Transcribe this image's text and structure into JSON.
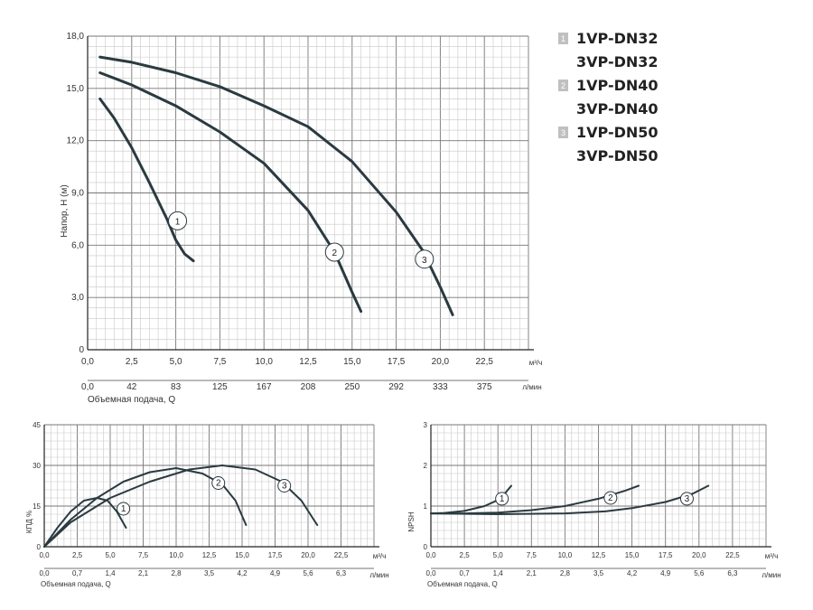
{
  "colors": {
    "curve": "#2a3a40",
    "grid_major": "#777777",
    "grid_minor": "#c8c8c8",
    "legend_box": "#c0c0c0"
  },
  "legend": [
    {
      "num": "1",
      "lines": [
        "1VP-DN32",
        "3VP-DN32"
      ]
    },
    {
      "num": "2",
      "lines": [
        "1VP-DN40",
        "3VP-DN40"
      ]
    },
    {
      "num": "3",
      "lines": [
        "1VP-DN50",
        "3VP-DN50"
      ]
    }
  ],
  "chart_data": [
    {
      "id": "head",
      "type": "line",
      "ylabel": "Напор, Н (м)",
      "xlabel": "Объемная подача, Q",
      "x_unit": "м³/ч",
      "x2_unit": "л/мин",
      "xlim": [
        0,
        25
      ],
      "ylim": [
        0,
        18
      ],
      "x_ticks": [
        "0,0",
        "2,5",
        "5,0",
        "7,5",
        "10,0",
        "12,5",
        "15,0",
        "17,5",
        "20,0",
        "22,5"
      ],
      "x2_ticks": [
        "0,0",
        "42",
        "83",
        "125",
        "167",
        "208",
        "250",
        "292",
        "333",
        "375"
      ],
      "y_ticks": [
        "0",
        "3,0",
        "6,0",
        "9,0",
        "12,0",
        "15,0",
        "18,0"
      ],
      "grid": true,
      "series": [
        {
          "name": "1",
          "x": [
            0.7,
            1.5,
            2.5,
            3.5,
            4.5,
            5.0,
            5.5,
            6.0
          ],
          "y": [
            14.4,
            13.3,
            11.6,
            9.6,
            7.5,
            6.3,
            5.5,
            5.1
          ]
        },
        {
          "name": "2",
          "x": [
            0.7,
            2.5,
            5.0,
            7.5,
            10.0,
            12.5,
            14.0,
            15.0,
            15.5
          ],
          "y": [
            15.9,
            15.2,
            14.0,
            12.5,
            10.7,
            8.0,
            5.6,
            3.3,
            2.2
          ]
        },
        {
          "name": "3",
          "x": [
            0.7,
            2.5,
            5.0,
            7.5,
            10.0,
            12.5,
            15.0,
            17.5,
            19.0,
            20.0,
            20.7
          ],
          "y": [
            16.8,
            16.5,
            15.9,
            15.1,
            14.0,
            12.8,
            10.8,
            7.9,
            5.7,
            3.6,
            2.0
          ]
        }
      ],
      "labels": [
        {
          "name": "1",
          "x": 5.1,
          "y": 7.4
        },
        {
          "name": "2",
          "x": 14.0,
          "y": 5.6
        },
        {
          "name": "3",
          "x": 19.1,
          "y": 5.2
        }
      ]
    },
    {
      "id": "efficiency",
      "type": "line",
      "ylabel": "КПД %",
      "xlabel": "Объемная подача, Q",
      "x_unit": "м³/ч",
      "x2_unit": "л/мин",
      "xlim": [
        0,
        25
      ],
      "ylim": [
        0,
        45
      ],
      "x_ticks": [
        "0,0",
        "2,5",
        "5,0",
        "7,5",
        "10,0",
        "12,5",
        "15,0",
        "17,5",
        "20,0",
        "22,5"
      ],
      "x2_ticks": [
        "0,0",
        "0,7",
        "1,4",
        "2,1",
        "2,8",
        "3,5",
        "4,2",
        "4,9",
        "5,6",
        "6,3"
      ],
      "y_ticks": [
        "0",
        "15",
        "30",
        "45"
      ],
      "grid": true,
      "series": [
        {
          "name": "1",
          "x": [
            0.0,
            1.0,
            2.0,
            3.0,
            4.0,
            4.8,
            5.5,
            6.2
          ],
          "y": [
            0,
            7,
            13,
            17,
            18,
            17,
            13,
            7
          ]
        },
        {
          "name": "2",
          "x": [
            0.0,
            2.0,
            4.0,
            6.0,
            8.0,
            10.0,
            12.0,
            13.5,
            14.5,
            15.3
          ],
          "y": [
            0,
            10,
            18,
            24,
            27.5,
            29,
            27,
            23,
            17,
            8
          ]
        },
        {
          "name": "3",
          "x": [
            0.0,
            2.0,
            5.0,
            8.0,
            11.0,
            13.5,
            16.0,
            18.0,
            19.5,
            20.7
          ],
          "y": [
            0,
            9,
            18,
            24,
            28.5,
            30,
            28.5,
            24,
            17,
            8
          ]
        }
      ],
      "labels": [
        {
          "name": "1",
          "x": 6.0,
          "y": 14
        },
        {
          "name": "2",
          "x": 13.2,
          "y": 23.5
        },
        {
          "name": "3",
          "x": 18.2,
          "y": 22.5
        }
      ]
    },
    {
      "id": "npsh",
      "type": "line",
      "ylabel": "NPSH",
      "xlabel": "Объемная подача, Q",
      "x_unit": "м³/ч",
      "x2_unit": "л/мин",
      "xlim": [
        0,
        25
      ],
      "ylim": [
        0,
        3
      ],
      "x_ticks": [
        "0,0",
        "2,5",
        "5,0",
        "7,5",
        "10,0",
        "12,5",
        "15,0",
        "17,5",
        "20,0",
        "22,5"
      ],
      "x2_ticks": [
        "0,0",
        "0,7",
        "1,4",
        "2,1",
        "2,8",
        "3,5",
        "4,2",
        "4,9",
        "5,6",
        "6,3"
      ],
      "y_ticks": [
        "0",
        "1",
        "2",
        "3"
      ],
      "grid": true,
      "series": [
        {
          "name": "1",
          "x": [
            0.0,
            1.0,
            2.5,
            4.0,
            5.0,
            5.5,
            6.0
          ],
          "y": [
            0.82,
            0.83,
            0.88,
            1.0,
            1.15,
            1.3,
            1.5
          ]
        },
        {
          "name": "2",
          "x": [
            0.0,
            2.5,
            5.0,
            7.5,
            10.0,
            12.5,
            14.5,
            15.5
          ],
          "y": [
            0.82,
            0.82,
            0.84,
            0.9,
            1.0,
            1.18,
            1.38,
            1.5
          ]
        },
        {
          "name": "3",
          "x": [
            0.0,
            5.0,
            10.0,
            13.0,
            15.0,
            17.5,
            19.5,
            20.7
          ],
          "y": [
            0.82,
            0.8,
            0.82,
            0.87,
            0.95,
            1.1,
            1.3,
            1.5
          ]
        }
      ],
      "labels": [
        {
          "name": "1",
          "x": 5.3,
          "y": 1.18
        },
        {
          "name": "2",
          "x": 13.4,
          "y": 1.2
        },
        {
          "name": "3",
          "x": 19.1,
          "y": 1.18
        }
      ]
    }
  ]
}
